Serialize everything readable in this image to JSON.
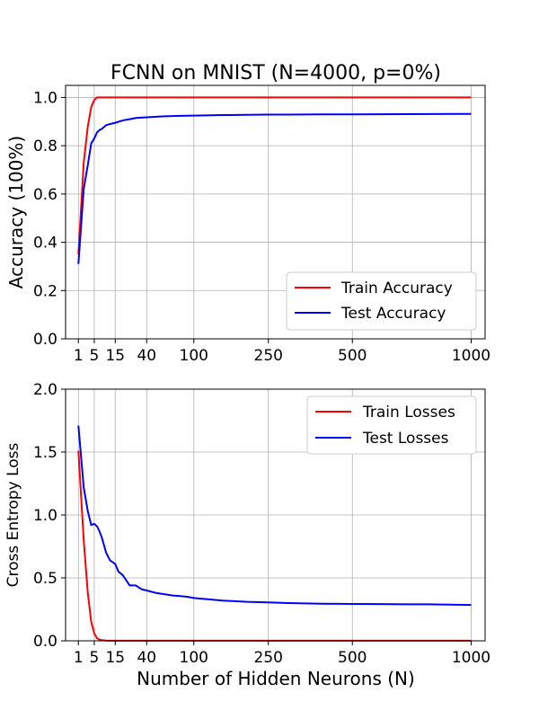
{
  "chart_data": [
    {
      "type": "line",
      "title": "FCNN on MNIST (N=4000, p=0%)",
      "xlabel": "",
      "ylabel": "Accuracy (100%)",
      "xscale": "sqrt",
      "xlim": [
        0,
        1070
      ],
      "ylim": [
        0.0,
        1.05
      ],
      "xticks": [
        1,
        5,
        15,
        40,
        100,
        250,
        500,
        1000
      ],
      "xtick_labels": [
        "1",
        "5",
        "15",
        "40",
        "100",
        "250",
        "500",
        "1000"
      ],
      "yticks": [
        0.0,
        0.2,
        0.4,
        0.6,
        0.8,
        1.0
      ],
      "ytick_labels": [
        "0.0",
        "0.2",
        "0.4",
        "0.6",
        "0.8",
        "1.0"
      ],
      "grid": true,
      "legend_position": "lower-right",
      "series": [
        {
          "name": "Train Accuracy",
          "color": "#ff0000",
          "x": [
            1,
            2,
            3,
            4,
            5,
            6,
            7,
            8,
            10,
            15,
            20,
            40,
            100,
            250,
            500,
            1000
          ],
          "y": [
            0.35,
            0.73,
            0.88,
            0.96,
            0.99,
            1.0,
            1.0,
            1.0,
            1.0,
            1.0,
            1.0,
            1.0,
            1.0,
            1.0,
            1.0,
            1.0
          ]
        },
        {
          "name": "Test Accuracy",
          "color": "#0000ff",
          "x": [
            1,
            2,
            3,
            4,
            5,
            6,
            7,
            8,
            10,
            12,
            15,
            20,
            25,
            30,
            40,
            50,
            60,
            80,
            100,
            150,
            200,
            250,
            300,
            400,
            500,
            700,
            1000
          ],
          "y": [
            0.31,
            0.62,
            0.72,
            0.81,
            0.83,
            0.855,
            0.865,
            0.87,
            0.885,
            0.89,
            0.895,
            0.905,
            0.91,
            0.915,
            0.918,
            0.92,
            0.922,
            0.924,
            0.925,
            0.927,
            0.928,
            0.929,
            0.929,
            0.93,
            0.93,
            0.931,
            0.932
          ]
        }
      ]
    },
    {
      "type": "line",
      "title": "",
      "xlabel": "Number of Hidden Neurons (N)",
      "ylabel": "Cross Entropy Loss",
      "xscale": "sqrt",
      "xlim": [
        0,
        1070
      ],
      "ylim": [
        0.0,
        2.0
      ],
      "xticks": [
        1,
        5,
        15,
        40,
        100,
        250,
        500,
        1000
      ],
      "xtick_labels": [
        "1",
        "5",
        "15",
        "40",
        "100",
        "250",
        "500",
        "1000"
      ],
      "yticks": [
        0.0,
        0.5,
        1.0,
        1.5,
        2.0
      ],
      "ytick_labels": [
        "0.0",
        "0.5",
        "1.0",
        "1.5",
        "2.0"
      ],
      "grid": true,
      "legend_position": "upper-right",
      "series": [
        {
          "name": "Train Losses",
          "color": "#ff0000",
          "x": [
            1,
            2,
            3,
            4,
            5,
            6,
            7,
            8,
            10,
            12,
            15,
            20,
            40,
            100,
            250,
            500,
            1000
          ],
          "y": [
            1.51,
            0.8,
            0.38,
            0.15,
            0.06,
            0.02,
            0.01,
            0.005,
            0.002,
            0.001,
            0.001,
            0.001,
            0.001,
            0.001,
            0.001,
            0.001,
            0.001
          ]
        },
        {
          "name": "Test Losses",
          "color": "#0000ff",
          "x": [
            1,
            2,
            3,
            4,
            5,
            6,
            7,
            8,
            10,
            12,
            15,
            17,
            20,
            25,
            30,
            35,
            40,
            50,
            60,
            70,
            80,
            90,
            100,
            150,
            200,
            250,
            300,
            400,
            500,
            600,
            700,
            800,
            1000
          ],
          "y": [
            1.71,
            1.22,
            1.03,
            0.92,
            0.93,
            0.91,
            0.87,
            0.82,
            0.7,
            0.64,
            0.61,
            0.55,
            0.52,
            0.44,
            0.44,
            0.41,
            0.4,
            0.38,
            0.37,
            0.36,
            0.355,
            0.35,
            0.34,
            0.32,
            0.31,
            0.305,
            0.3,
            0.295,
            0.293,
            0.292,
            0.29,
            0.29,
            0.285
          ]
        }
      ]
    }
  ]
}
